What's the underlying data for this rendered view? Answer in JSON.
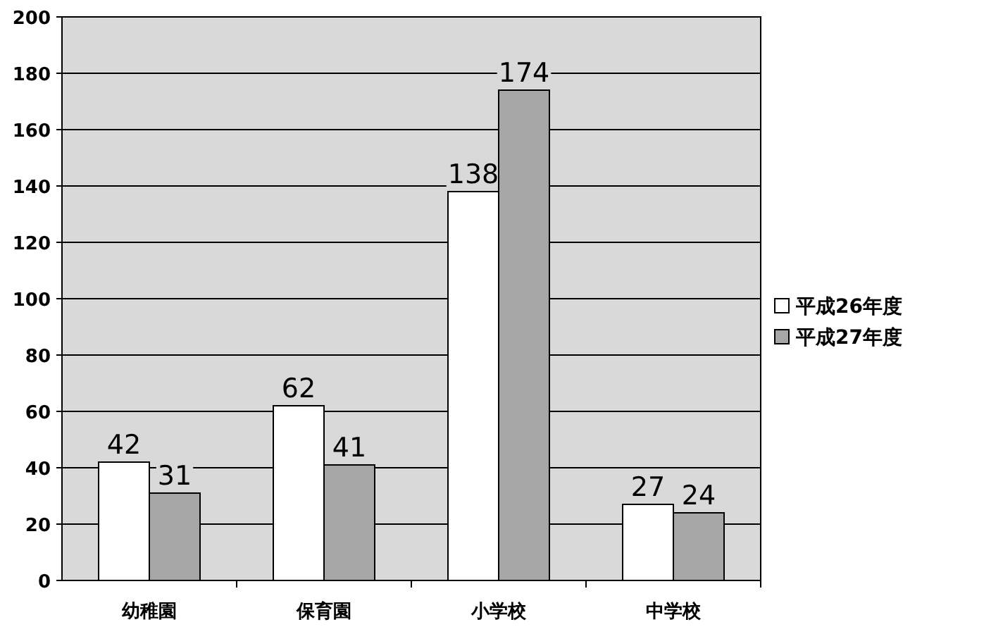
{
  "chart_data": {
    "type": "bar",
    "categories": [
      "幼稚園",
      "保育園",
      "小学校",
      "中学校"
    ],
    "series": [
      {
        "name": "平成26年度",
        "color": "#ffffff",
        "values": [
          42,
          62,
          138,
          27
        ]
      },
      {
        "name": "平成27年度",
        "color": "#a6a6a6",
        "values": [
          31,
          41,
          174,
          24
        ]
      }
    ],
    "ylim": [
      0,
      200
    ],
    "yticks": [
      0,
      20,
      40,
      60,
      80,
      100,
      120,
      140,
      160,
      180,
      200
    ],
    "grid": "y",
    "legend": "right",
    "data_labels": true
  }
}
